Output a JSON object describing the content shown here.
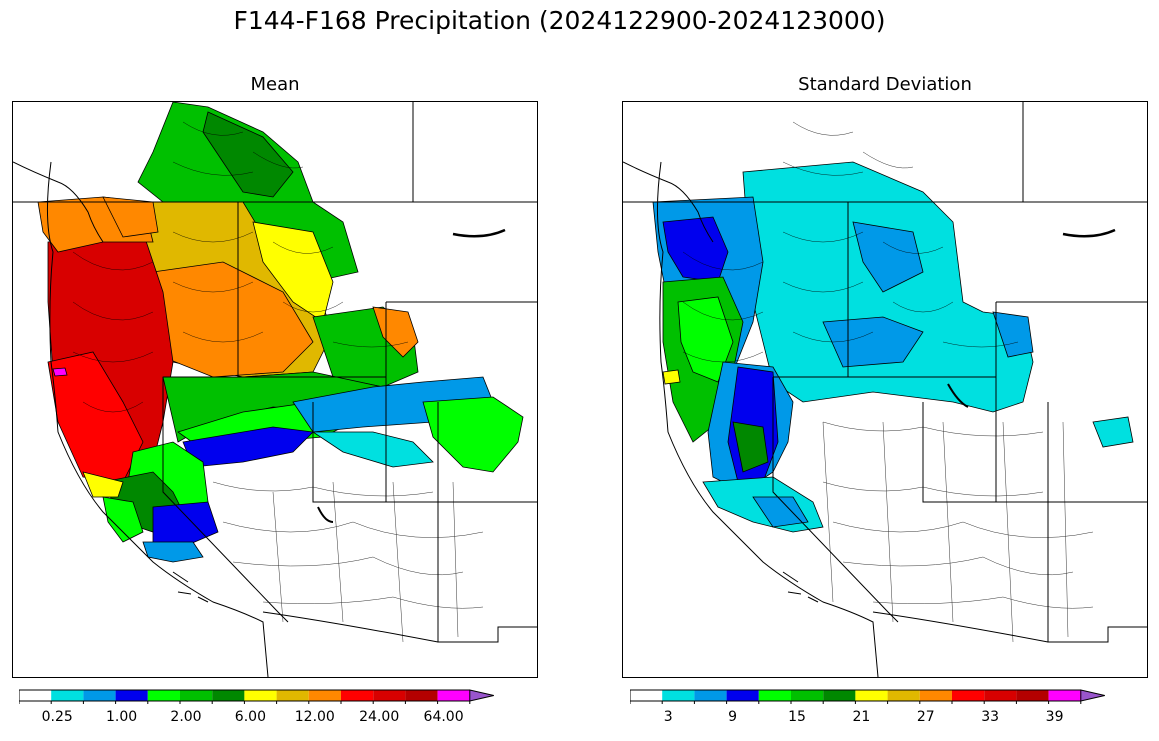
{
  "suptitle": "F144-F168 Precipitation (2024122900-2024123000)",
  "panels": [
    {
      "title": "Mean"
    },
    {
      "title": "Standard Deviation"
    }
  ],
  "colorbar_colors": [
    "#ffffff",
    "#00e0e0",
    "#0099e8",
    "#0000ee",
    "#00ff00",
    "#00c000",
    "#008800",
    "#ffff00",
    "#e0b800",
    "#ff8800",
    "#ff0000",
    "#d80000",
    "#b40000",
    "#ff00ff",
    "#9955cc"
  ],
  "mean_colorbar": {
    "tick_labels": [
      "0.25",
      "1.00",
      "2.00",
      "6.00",
      "12.00",
      "24.00",
      "64.00"
    ]
  },
  "std_colorbar": {
    "tick_labels": [
      "3",
      "9",
      "15",
      "21",
      "27",
      "33",
      "39"
    ]
  },
  "region_colors": {
    "mean": {
      "coast": "#d80000",
      "coast_outer": "#ff0000",
      "coast_edge": "#ff8800",
      "oregon_mid": "#e0b800",
      "oregon_mid2": "#ff8800",
      "interior_west": "#ffff00",
      "bc": "#00c000",
      "bc_dark": "#008800",
      "idaho": "#e0b800",
      "montana": "#00c000",
      "nevada_north": "#00ff00",
      "nevada_band": "#0000ee",
      "nevada_band2": "#0099e8",
      "cyan_band": "#00e0e0",
      "east_green": "#00ff00",
      "sierra": "#0000ee",
      "socal": "#0099e8",
      "dry": "#ffffff",
      "spot": "#ff00ff"
    },
    "std": {
      "coast_blue": "#0099e8",
      "coast_dark": "#0000ee",
      "coast_green": "#00c000",
      "coast_lime": "#00ff00",
      "interior_cyan": "#00e0e0",
      "interior_blue": "#0099e8",
      "sierra_dark": "#0000ee",
      "sierra_green": "#008800",
      "dry": "#ffffff",
      "spot_yellow": "#ffff00"
    }
  }
}
